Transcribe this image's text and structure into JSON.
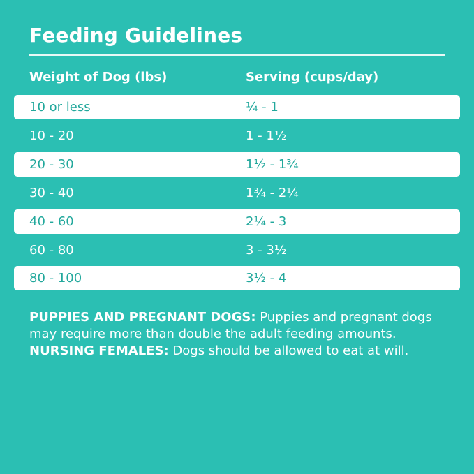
{
  "title": "Feeding Guidelines",
  "headers": {
    "weight": "Weight of Dog (lbs)",
    "serving": "Serving (cups/day)"
  },
  "rows": [
    {
      "weight": "10 or less",
      "serving": "¼ - 1"
    },
    {
      "weight": "10 - 20",
      "serving": "1 - 1½"
    },
    {
      "weight": "20 - 30",
      "serving": "1½ - 1¾"
    },
    {
      "weight": "30 - 40",
      "serving": "1¾ - 2¼"
    },
    {
      "weight": "40 - 60",
      "serving": "2¼ - 3"
    },
    {
      "weight": "60 - 80",
      "serving": "3 - 3½"
    },
    {
      "weight": "80 - 100",
      "serving": "3½ - 4"
    }
  ],
  "note": {
    "label1": "PUPPIES AND PREGNANT DOGS:",
    "text1": " Puppies and pregnant dogs may require more than double the adult feeding amounts. ",
    "label2": "NURSING FEMALES:",
    "text2": " Dogs should be allowed to eat at will."
  },
  "colors": {
    "background": "#2bbfb3",
    "row_text": "#22a89c",
    "row_fill": "#ffffff"
  }
}
